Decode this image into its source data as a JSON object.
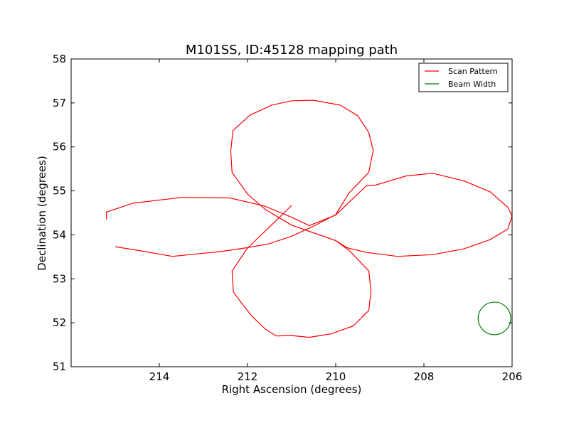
{
  "chart_data": {
    "type": "line",
    "title": "M101SS, ID:45128 mapping path",
    "xlabel": "Right Ascension (degrees)",
    "ylabel": "Declination (degrees)",
    "xlim": [
      216.0,
      206.0
    ],
    "ylim": [
      51,
      58
    ],
    "x_inverted": true,
    "xticks": [
      214,
      212,
      210,
      208,
      206
    ],
    "yticks": [
      51,
      52,
      53,
      54,
      55,
      56,
      57,
      58
    ],
    "grid": false,
    "legend_position": "top-right",
    "series": [
      {
        "name": "Scan Pattern",
        "color": "#ff0000",
        "points": [
          [
            215.2,
            54.35
          ],
          [
            215.2,
            54.52
          ],
          [
            214.6,
            54.72
          ],
          [
            213.5,
            54.85
          ],
          [
            212.4,
            54.84
          ],
          [
            211.6,
            54.65
          ],
          [
            211.0,
            54.4
          ],
          [
            210.6,
            54.21
          ],
          [
            210.0,
            54.45
          ],
          [
            209.3,
            55.12
          ],
          [
            209.1,
            55.13
          ],
          [
            208.4,
            55.34
          ],
          [
            207.8,
            55.4
          ],
          [
            207.1,
            55.23
          ],
          [
            206.5,
            54.98
          ],
          [
            206.1,
            54.63
          ],
          [
            206.0,
            54.43
          ],
          [
            206.1,
            54.13
          ],
          [
            206.5,
            53.89
          ],
          [
            207.1,
            53.68
          ],
          [
            207.8,
            53.55
          ],
          [
            208.6,
            53.51
          ],
          [
            209.3,
            53.6
          ],
          [
            209.75,
            53.71
          ],
          [
            210.0,
            53.87
          ],
          [
            210.6,
            54.08
          ],
          [
            211.0,
            54.22
          ],
          [
            211.6,
            54.58
          ],
          [
            212.0,
            54.93
          ],
          [
            212.35,
            55.42
          ],
          [
            212.38,
            55.9
          ],
          [
            212.33,
            56.37
          ],
          [
            211.95,
            56.72
          ],
          [
            211.45,
            56.95
          ],
          [
            211.0,
            57.05
          ],
          [
            210.5,
            57.06
          ],
          [
            209.9,
            56.95
          ],
          [
            209.5,
            56.71
          ],
          [
            209.25,
            56.33
          ],
          [
            209.15,
            55.92
          ],
          [
            209.25,
            55.42
          ],
          [
            209.7,
            54.95
          ],
          [
            210.0,
            54.46
          ],
          [
            210.5,
            54.2
          ],
          [
            211.0,
            53.97
          ],
          [
            211.5,
            53.8
          ],
          [
            212.0,
            53.71
          ],
          [
            212.6,
            53.62
          ],
          [
            213.7,
            53.51
          ],
          [
            214.5,
            53.65
          ],
          [
            215.0,
            53.73
          ]
        ]
      },
      {
        "name": "",
        "color": "#ff0000",
        "points": [
          [
            210.0,
            53.87
          ],
          [
            209.7,
            53.65
          ],
          [
            209.25,
            53.18
          ],
          [
            209.2,
            52.72
          ],
          [
            209.25,
            52.28
          ],
          [
            209.6,
            51.93
          ],
          [
            210.1,
            51.75
          ],
          [
            210.6,
            51.67
          ],
          [
            211.0,
            51.71
          ],
          [
            211.35,
            51.7
          ],
          [
            211.6,
            51.86
          ],
          [
            211.9,
            52.15
          ],
          [
            212.1,
            52.4
          ],
          [
            212.32,
            52.7
          ],
          [
            212.35,
            53.18
          ],
          [
            212.0,
            53.7
          ],
          [
            211.5,
            54.18
          ],
          [
            211.0,
            54.67
          ]
        ]
      },
      {
        "name": "Beam Width",
        "type": "circle",
        "color": "#008000",
        "center": [
          206.4,
          52.1
        ],
        "radius": 0.37
      }
    ]
  }
}
